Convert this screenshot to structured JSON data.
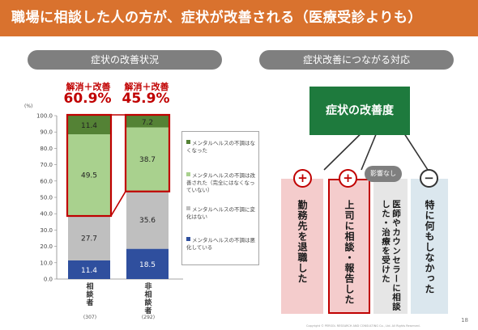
{
  "title": "職場に相談した人の方が、症状が改善される（医療受診よりも）",
  "left_header": "症状の改善状況",
  "right_header": "症状改善につながる対応",
  "callouts": [
    {
      "label": "解消＋改善",
      "value": "60.9%"
    },
    {
      "label": "解消＋改善",
      "value": "45.9%"
    }
  ],
  "chart_data": {
    "type": "bar",
    "stacked": true,
    "unit": "(%)",
    "ylim": [
      0,
      100
    ],
    "yticks": [
      "0.0",
      "10.0",
      "20.0",
      "30.0",
      "40.0",
      "50.0",
      "60.0",
      "70.0",
      "80.0",
      "90.0",
      "100.0"
    ],
    "categories": [
      "相談者",
      "非相談者"
    ],
    "sample_sizes": [
      "(307)",
      "(292)"
    ],
    "series": [
      {
        "name": "メンタルヘルスの不調は悪化している",
        "color": "#2f4f9e",
        "values": [
          11.4,
          18.5
        ]
      },
      {
        "name": "メンタルヘルスの不調に変化はない",
        "color": "#bfbfbf",
        "values": [
          27.7,
          35.6
        ]
      },
      {
        "name": "メンタルヘルスの不調は改善された（完全にはなくなっていない）",
        "color": "#a9d18e",
        "values": [
          49.5,
          38.7
        ]
      },
      {
        "name": "メンタルヘルスの不調はなくなった",
        "color": "#548235",
        "values": [
          11.4,
          7.2
        ]
      }
    ],
    "highlight": [
      {
        "category": 0,
        "series": [
          2,
          3
        ]
      },
      {
        "category": 1,
        "series": [
          2,
          3
        ]
      }
    ],
    "highlight_color": "#c00000"
  },
  "legend": [
    {
      "text": "メンタルヘルスの不調はなくなった",
      "color": "#548235"
    },
    {
      "text": "メンタルヘルスの不調は改善された（完全にはなくなっていない）",
      "color": "#a9d18e"
    },
    {
      "text": "メンタルヘルスの不調に変化はない",
      "color": "#bfbfbf"
    },
    {
      "text": "メンタルヘルスの不調は悪化している",
      "color": "#2f4f9e"
    }
  ],
  "diagram": {
    "center": "症状の改善度",
    "badge": "影響なし",
    "items": [
      {
        "symbol": "+",
        "text": "勤務先を退職した",
        "bg": "#f4cccc",
        "neutral": false,
        "highlight": false
      },
      {
        "symbol": "+",
        "text": "上司に相談・報告した",
        "bg": "#f4cccc",
        "neutral": false,
        "highlight": true
      },
      {
        "symbol": "",
        "text": "医師やカウンセラーに相談した・治療を受けた",
        "bg": "#e6e6e6",
        "neutral": true,
        "highlight": false
      },
      {
        "symbol": "−",
        "text": "特に何もしなかった",
        "bg": "#dbe7ee",
        "neutral": true,
        "highlight": false
      }
    ]
  },
  "page_number": "18",
  "copyright": "Copyright © PERSOL RESEARCH AND CONSULTING Co., Ltd. All Rights Reserved."
}
